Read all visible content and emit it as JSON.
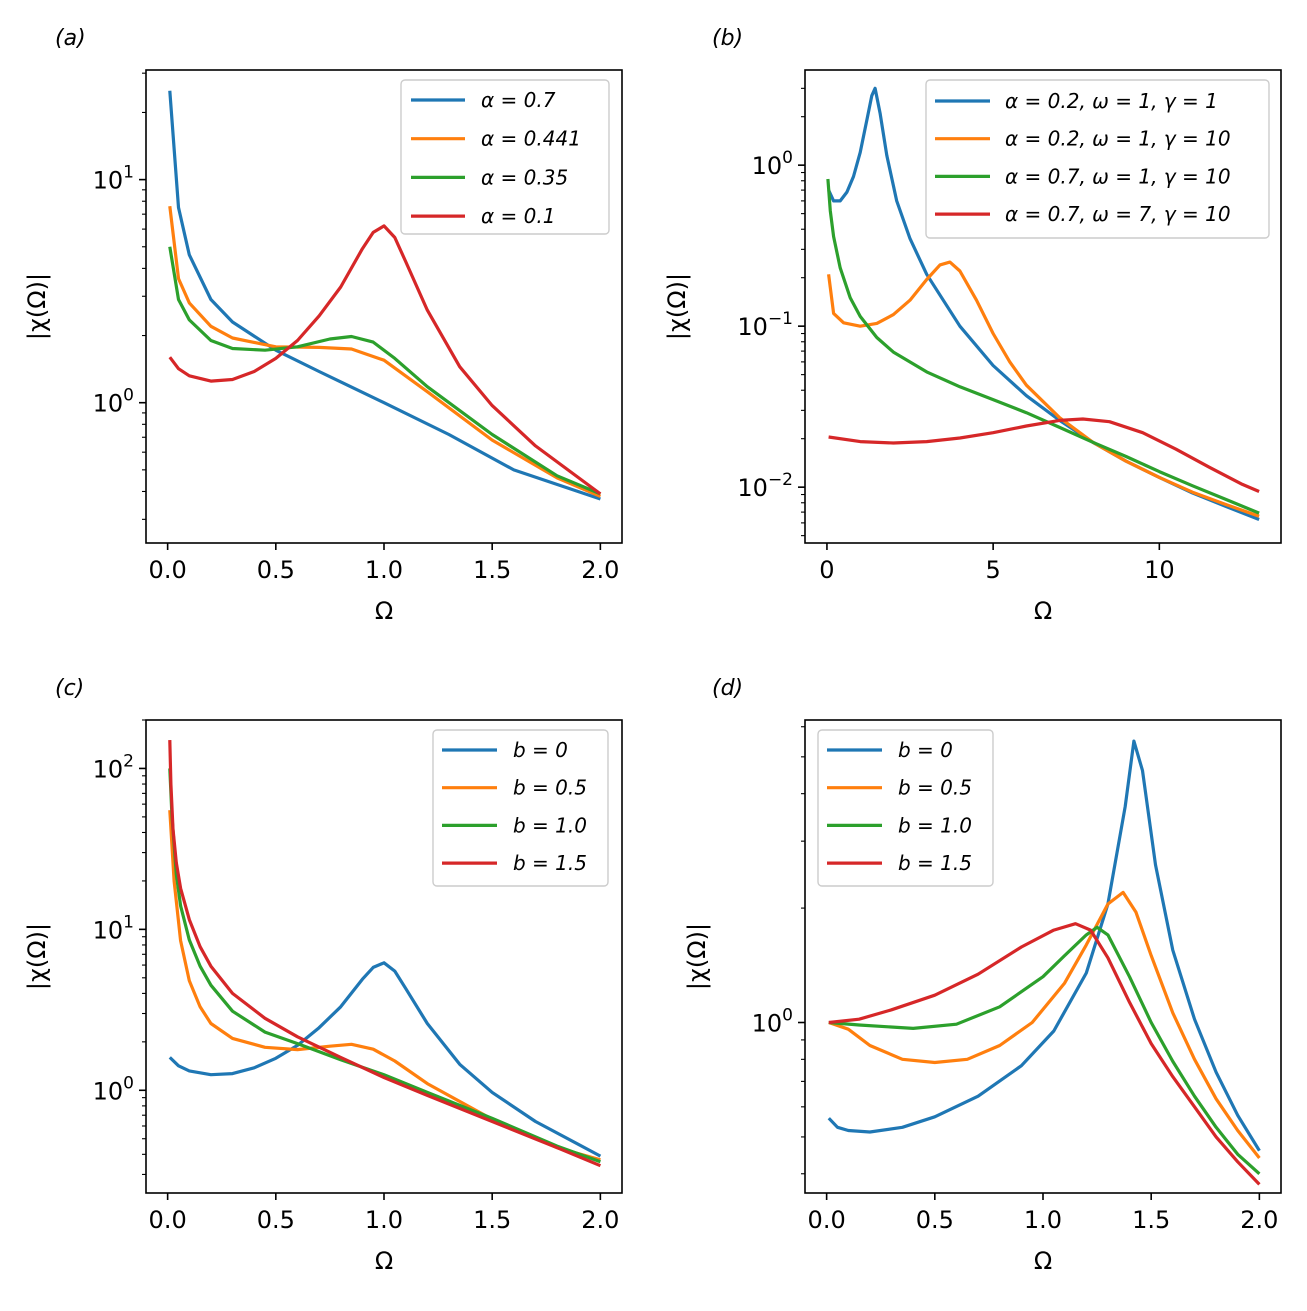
{
  "chart_data": [
    {
      "panel": "(a)",
      "type": "line",
      "xlabel": "Ω",
      "ylabel": "|χ(Ω)|",
      "yscale": "log",
      "xlim": [
        -0.1,
        2.1
      ],
      "ylim": [
        0.235,
        31
      ],
      "xticks": [
        0.0,
        0.5,
        1.0,
        1.5,
        2.0
      ],
      "xtick_labels": [
        "0.0",
        "0.5",
        "1.0",
        "1.5",
        "2.0"
      ],
      "yticks": [
        1,
        10
      ],
      "ytick_labels": [
        "10^0",
        "10^1"
      ],
      "legend_position": "top-right",
      "series": [
        {
          "name": "α = 0.7",
          "color": "#1f77b4",
          "x": [
            0.01,
            0.05,
            0.1,
            0.2,
            0.3,
            0.5,
            0.7,
            1.0,
            1.3,
            1.6,
            2.0
          ],
          "y": [
            25,
            7.5,
            4.6,
            2.9,
            2.3,
            1.72,
            1.38,
            1.0,
            0.72,
            0.5,
            0.37
          ]
        },
        {
          "name": "α = 0.441",
          "color": "#ff7f0e",
          "x": [
            0.01,
            0.05,
            0.1,
            0.2,
            0.3,
            0.5,
            0.7,
            0.85,
            1.0,
            1.2,
            1.5,
            1.8,
            2.0
          ],
          "y": [
            7.6,
            3.6,
            2.8,
            2.2,
            1.95,
            1.78,
            1.77,
            1.74,
            1.55,
            1.12,
            0.68,
            0.46,
            0.38
          ]
        },
        {
          "name": "α = 0.35",
          "color": "#2ca02c",
          "x": [
            0.01,
            0.05,
            0.1,
            0.2,
            0.3,
            0.45,
            0.6,
            0.75,
            0.85,
            0.95,
            1.05,
            1.2,
            1.5,
            1.8,
            2.0
          ],
          "y": [
            5,
            2.9,
            2.35,
            1.9,
            1.75,
            1.72,
            1.78,
            1.93,
            1.98,
            1.87,
            1.58,
            1.18,
            0.72,
            0.47,
            0.39
          ]
        },
        {
          "name": "α = 0.1",
          "color": "#d62728",
          "x": [
            0.01,
            0.05,
            0.1,
            0.2,
            0.3,
            0.4,
            0.5,
            0.6,
            0.7,
            0.8,
            0.9,
            0.95,
            1.0,
            1.05,
            1.1,
            1.2,
            1.35,
            1.5,
            1.7,
            2.0
          ],
          "y": [
            1.6,
            1.42,
            1.32,
            1.25,
            1.27,
            1.38,
            1.58,
            1.9,
            2.45,
            3.3,
            4.9,
            5.8,
            6.2,
            5.5,
            4.3,
            2.6,
            1.45,
            0.97,
            0.64,
            0.39
          ]
        }
      ]
    },
    {
      "panel": "(b)",
      "type": "line",
      "xlabel": "Ω",
      "ylabel": "|χ(Ω)|",
      "yscale": "log",
      "xlim": [
        -0.66,
        13.66
      ],
      "ylim": [
        0.0045,
        3.9
      ],
      "xticks": [
        0,
        5,
        10
      ],
      "xtick_labels": [
        "0",
        "5",
        "10"
      ],
      "yticks": [
        0.01,
        0.1,
        1
      ],
      "ytick_labels": [
        "10^−2",
        "10^−1",
        "10^0"
      ],
      "legend_position": "top-right",
      "series": [
        {
          "name": "α = 0.2, ω = 1, γ = 1",
          "color": "#1f77b4",
          "x": [
            0.05,
            0.2,
            0.4,
            0.6,
            0.8,
            1.0,
            1.2,
            1.35,
            1.45,
            1.6,
            1.8,
            2.1,
            2.5,
            3.0,
            4.0,
            5.0,
            6.0,
            7.0,
            8.0,
            9.0,
            10.0,
            11.0,
            12.0,
            13.0
          ],
          "y": [
            0.7,
            0.6,
            0.6,
            0.68,
            0.85,
            1.2,
            1.9,
            2.7,
            3.0,
            2.1,
            1.15,
            0.6,
            0.35,
            0.21,
            0.1,
            0.057,
            0.037,
            0.026,
            0.019,
            0.0145,
            0.0115,
            0.0092,
            0.0076,
            0.0063
          ]
        },
        {
          "name": "α = 0.2, ω = 1, γ = 10",
          "color": "#ff7f0e",
          "x": [
            0.05,
            0.2,
            0.5,
            1.0,
            1.5,
            2.0,
            2.5,
            3.0,
            3.4,
            3.7,
            4.0,
            4.5,
            5.0,
            5.5,
            6.0,
            7.0,
            8.0,
            9.0,
            10.0,
            11.0,
            12.0,
            13.0
          ],
          "y": [
            0.21,
            0.12,
            0.105,
            0.1,
            0.104,
            0.118,
            0.145,
            0.195,
            0.24,
            0.25,
            0.22,
            0.145,
            0.09,
            0.06,
            0.043,
            0.027,
            0.019,
            0.0145,
            0.0115,
            0.0093,
            0.0078,
            0.0066
          ]
        },
        {
          "name": "α = 0.7, ω = 1, γ = 10",
          "color": "#2ca02c",
          "x": [
            0.03,
            0.1,
            0.2,
            0.4,
            0.7,
            1.0,
            1.5,
            2.0,
            3.0,
            4.0,
            5.0,
            6.0,
            7.0,
            8.0,
            9.0,
            10.0,
            11.0,
            12.0,
            13.0
          ],
          "y": [
            0.82,
            0.52,
            0.36,
            0.23,
            0.15,
            0.115,
            0.085,
            0.069,
            0.052,
            0.042,
            0.035,
            0.029,
            0.0235,
            0.019,
            0.0155,
            0.0125,
            0.0102,
            0.0084,
            0.0069
          ]
        },
        {
          "name": "α = 0.7, ω = 7, γ = 10",
          "color": "#d62728",
          "x": [
            0.05,
            1.0,
            2.0,
            3.0,
            4.0,
            5.0,
            6.0,
            7.0,
            7.7,
            8.5,
            9.5,
            10.5,
            11.5,
            12.5,
            13.0
          ],
          "y": [
            0.0205,
            0.0192,
            0.0188,
            0.0192,
            0.0202,
            0.0218,
            0.024,
            0.026,
            0.0265,
            0.0255,
            0.0218,
            0.0172,
            0.0133,
            0.0104,
            0.0094
          ]
        }
      ]
    },
    {
      "panel": "(c)",
      "type": "line",
      "xlabel": "Ω",
      "ylabel": "|χ(Ω)|",
      "yscale": "log",
      "xlim": [
        -0.1,
        2.1
      ],
      "ylim": [
        0.23,
        200
      ],
      "xticks": [
        0.0,
        0.5,
        1.0,
        1.5,
        2.0
      ],
      "xtick_labels": [
        "0.0",
        "0.5",
        "1.0",
        "1.5",
        "2.0"
      ],
      "yticks": [
        1,
        10,
        100
      ],
      "ytick_labels": [
        "10^0",
        "10^1",
        "10^2"
      ],
      "legend_position": "top-right",
      "series": [
        {
          "name": "b = 0",
          "color": "#1f77b4",
          "x": [
            0.01,
            0.05,
            0.1,
            0.2,
            0.3,
            0.4,
            0.5,
            0.6,
            0.7,
            0.8,
            0.9,
            0.95,
            1.0,
            1.05,
            1.1,
            1.2,
            1.35,
            1.5,
            1.7,
            2.0
          ],
          "y": [
            1.6,
            1.42,
            1.32,
            1.25,
            1.27,
            1.38,
            1.58,
            1.9,
            2.45,
            3.3,
            4.9,
            5.8,
            6.2,
            5.5,
            4.3,
            2.6,
            1.45,
            0.97,
            0.64,
            0.39
          ]
        },
        {
          "name": "b = 0.5",
          "color": "#ff7f0e",
          "x": [
            0.01,
            0.03,
            0.06,
            0.1,
            0.15,
            0.2,
            0.3,
            0.45,
            0.6,
            0.75,
            0.85,
            0.95,
            1.05,
            1.2,
            1.5,
            1.8,
            2.0
          ],
          "y": [
            55,
            20,
            8.5,
            4.8,
            3.3,
            2.6,
            2.1,
            1.85,
            1.79,
            1.88,
            1.93,
            1.8,
            1.52,
            1.1,
            0.66,
            0.44,
            0.37
          ]
        },
        {
          "name": "b = 1.0",
          "color": "#2ca02c",
          "x": [
            0.01,
            0.02,
            0.04,
            0.06,
            0.1,
            0.15,
            0.2,
            0.3,
            0.45,
            0.6,
            0.8,
            1.0,
            1.2,
            1.5,
            1.8,
            2.0
          ],
          "y": [
            100,
            50,
            22,
            14,
            8.6,
            5.9,
            4.5,
            3.1,
            2.3,
            1.95,
            1.55,
            1.25,
            0.97,
            0.67,
            0.45,
            0.36
          ]
        },
        {
          "name": "b = 1.5",
          "color": "#d62728",
          "x": [
            0.01,
            0.015,
            0.025,
            0.04,
            0.06,
            0.1,
            0.15,
            0.2,
            0.3,
            0.45,
            0.6,
            0.8,
            1.0,
            1.2,
            1.5,
            1.8,
            2.0
          ],
          "y": [
            150,
            80,
            42,
            26,
            18,
            11.5,
            7.8,
            5.9,
            4.0,
            2.8,
            2.15,
            1.6,
            1.2,
            0.93,
            0.64,
            0.44,
            0.34
          ]
        }
      ]
    },
    {
      "panel": "(d)",
      "type": "line",
      "xlabel": "Ω",
      "ylabel": "|χ(Ω)|",
      "yscale": "log",
      "xlim": [
        -0.1,
        2.1
      ],
      "ylim": [
        0.356,
        6.25
      ],
      "xticks": [
        0.0,
        0.5,
        1.0,
        1.5,
        2.0
      ],
      "xtick_labels": [
        "0.0",
        "0.5",
        "1.0",
        "1.5",
        "2.0"
      ],
      "yticks": [
        1
      ],
      "ytick_labels": [
        "10^0"
      ],
      "legend_position": "top-left",
      "series": [
        {
          "name": "b = 0",
          "color": "#1f77b4",
          "x": [
            0.01,
            0.05,
            0.1,
            0.2,
            0.35,
            0.5,
            0.7,
            0.9,
            1.05,
            1.2,
            1.3,
            1.38,
            1.42,
            1.46,
            1.52,
            1.6,
            1.7,
            1.8,
            1.9,
            2.0
          ],
          "y": [
            0.56,
            0.53,
            0.52,
            0.515,
            0.53,
            0.565,
            0.64,
            0.77,
            0.95,
            1.35,
            2.05,
            3.7,
            5.5,
            4.6,
            2.6,
            1.55,
            1.02,
            0.74,
            0.57,
            0.46
          ]
        },
        {
          "name": "b = 0.5",
          "color": "#ff7f0e",
          "x": [
            0.01,
            0.1,
            0.2,
            0.35,
            0.5,
            0.65,
            0.8,
            0.95,
            1.1,
            1.2,
            1.3,
            1.37,
            1.43,
            1.5,
            1.6,
            1.7,
            1.8,
            1.9,
            2.0
          ],
          "y": [
            1.0,
            0.96,
            0.87,
            0.8,
            0.785,
            0.8,
            0.87,
            1.0,
            1.27,
            1.6,
            2.05,
            2.2,
            1.95,
            1.5,
            1.06,
            0.8,
            0.63,
            0.52,
            0.44
          ]
        },
        {
          "name": "b = 1.0",
          "color": "#2ca02c",
          "x": [
            0.01,
            0.15,
            0.4,
            0.6,
            0.8,
            1.0,
            1.1,
            1.2,
            1.25,
            1.3,
            1.4,
            1.5,
            1.6,
            1.7,
            1.8,
            1.9,
            2.0
          ],
          "y": [
            1.0,
            0.985,
            0.965,
            0.99,
            1.1,
            1.32,
            1.5,
            1.7,
            1.78,
            1.7,
            1.32,
            1.0,
            0.79,
            0.64,
            0.53,
            0.45,
            0.4
          ]
        },
        {
          "name": "b = 1.5",
          "color": "#d62728",
          "x": [
            0.01,
            0.15,
            0.3,
            0.5,
            0.7,
            0.9,
            1.05,
            1.15,
            1.22,
            1.3,
            1.4,
            1.5,
            1.6,
            1.7,
            1.8,
            1.9,
            2.0
          ],
          "y": [
            1.0,
            1.02,
            1.08,
            1.18,
            1.34,
            1.58,
            1.75,
            1.82,
            1.75,
            1.48,
            1.13,
            0.88,
            0.72,
            0.6,
            0.5,
            0.43,
            0.375
          ]
        }
      ]
    }
  ]
}
